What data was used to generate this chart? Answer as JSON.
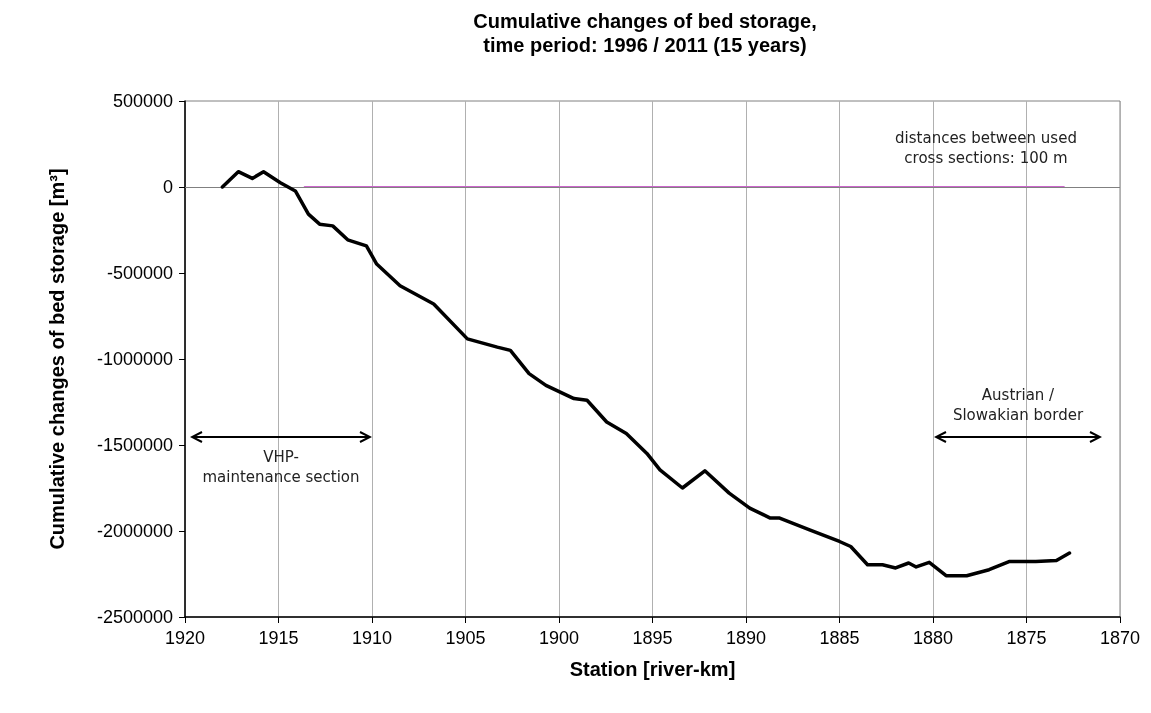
{
  "chart_data": {
    "type": "line",
    "title": "Cumulative changes of bed storage,\ntime period: 1996 / 2011 (15 years)",
    "xlabel": "Station [river-km]",
    "ylabel": "Cumulative changes of bed storage [m³]",
    "xlim": [
      1920,
      1870
    ],
    "xticks": [
      1920,
      1915,
      1910,
      1905,
      1900,
      1895,
      1890,
      1885,
      1880,
      1875,
      1870
    ],
    "ylim": [
      -2500000,
      500000
    ],
    "yticks": [
      -2500000,
      -2000000,
      -1500000,
      -1000000,
      -500000,
      0,
      500000
    ],
    "grid": "x",
    "marker": "none",
    "line_style": "solid",
    "ref_lines": [
      {
        "axis": "y",
        "value": 0,
        "color": "#808080"
      }
    ],
    "annotations": [
      "distances between used cross sections: 100 m",
      "VHP-\nmaintenance section",
      "Austrian /\nSlowakian border"
    ],
    "series": [
      {
        "color": "#000000",
        "x": [
          1918.0,
          1917.15,
          1916.4,
          1915.8,
          1914.9,
          1914.1,
          1913.4,
          1912.8,
          1912.1,
          1911.3,
          1910.3,
          1909.75,
          1908.5,
          1906.7,
          1904.9,
          1903.3,
          1902.6,
          1901.6,
          1900.7,
          1899.2,
          1898.5,
          1897.45,
          1896.4,
          1895.3,
          1894.6,
          1893.4,
          1892.2,
          1890.9,
          1889.8,
          1888.7,
          1888.2,
          1886.6,
          1885.0,
          1884.4,
          1883.5,
          1882.7,
          1882.0,
          1881.3,
          1880.9,
          1880.2,
          1879.3,
          1878.2,
          1877.0,
          1875.9,
          1874.5,
          1873.4,
          1872.7
        ],
        "values": [
          0,
          89000,
          50000,
          89000,
          25000,
          -23000,
          -158000,
          -216000,
          -226000,
          -307000,
          -342000,
          -448000,
          -574000,
          -680000,
          -883000,
          -931000,
          -950000,
          -1085000,
          -1153000,
          -1230000,
          -1240000,
          -1366000,
          -1433000,
          -1549000,
          -1645000,
          -1750000,
          -1650000,
          -1780000,
          -1867000,
          -1925000,
          -1925000,
          -1993000,
          -2061000,
          -2090000,
          -2196000,
          -2196000,
          -2215000,
          -2186000,
          -2209000,
          -2182000,
          -2260000,
          -2260000,
          -2225000,
          -2177000,
          -2177000,
          -2171000,
          -2128000
        ]
      },
      {
        "color": "#cc66cc",
        "x": [
          1913.6,
          1873.0
        ],
        "values": [
          0,
          0
        ]
      }
    ]
  }
}
